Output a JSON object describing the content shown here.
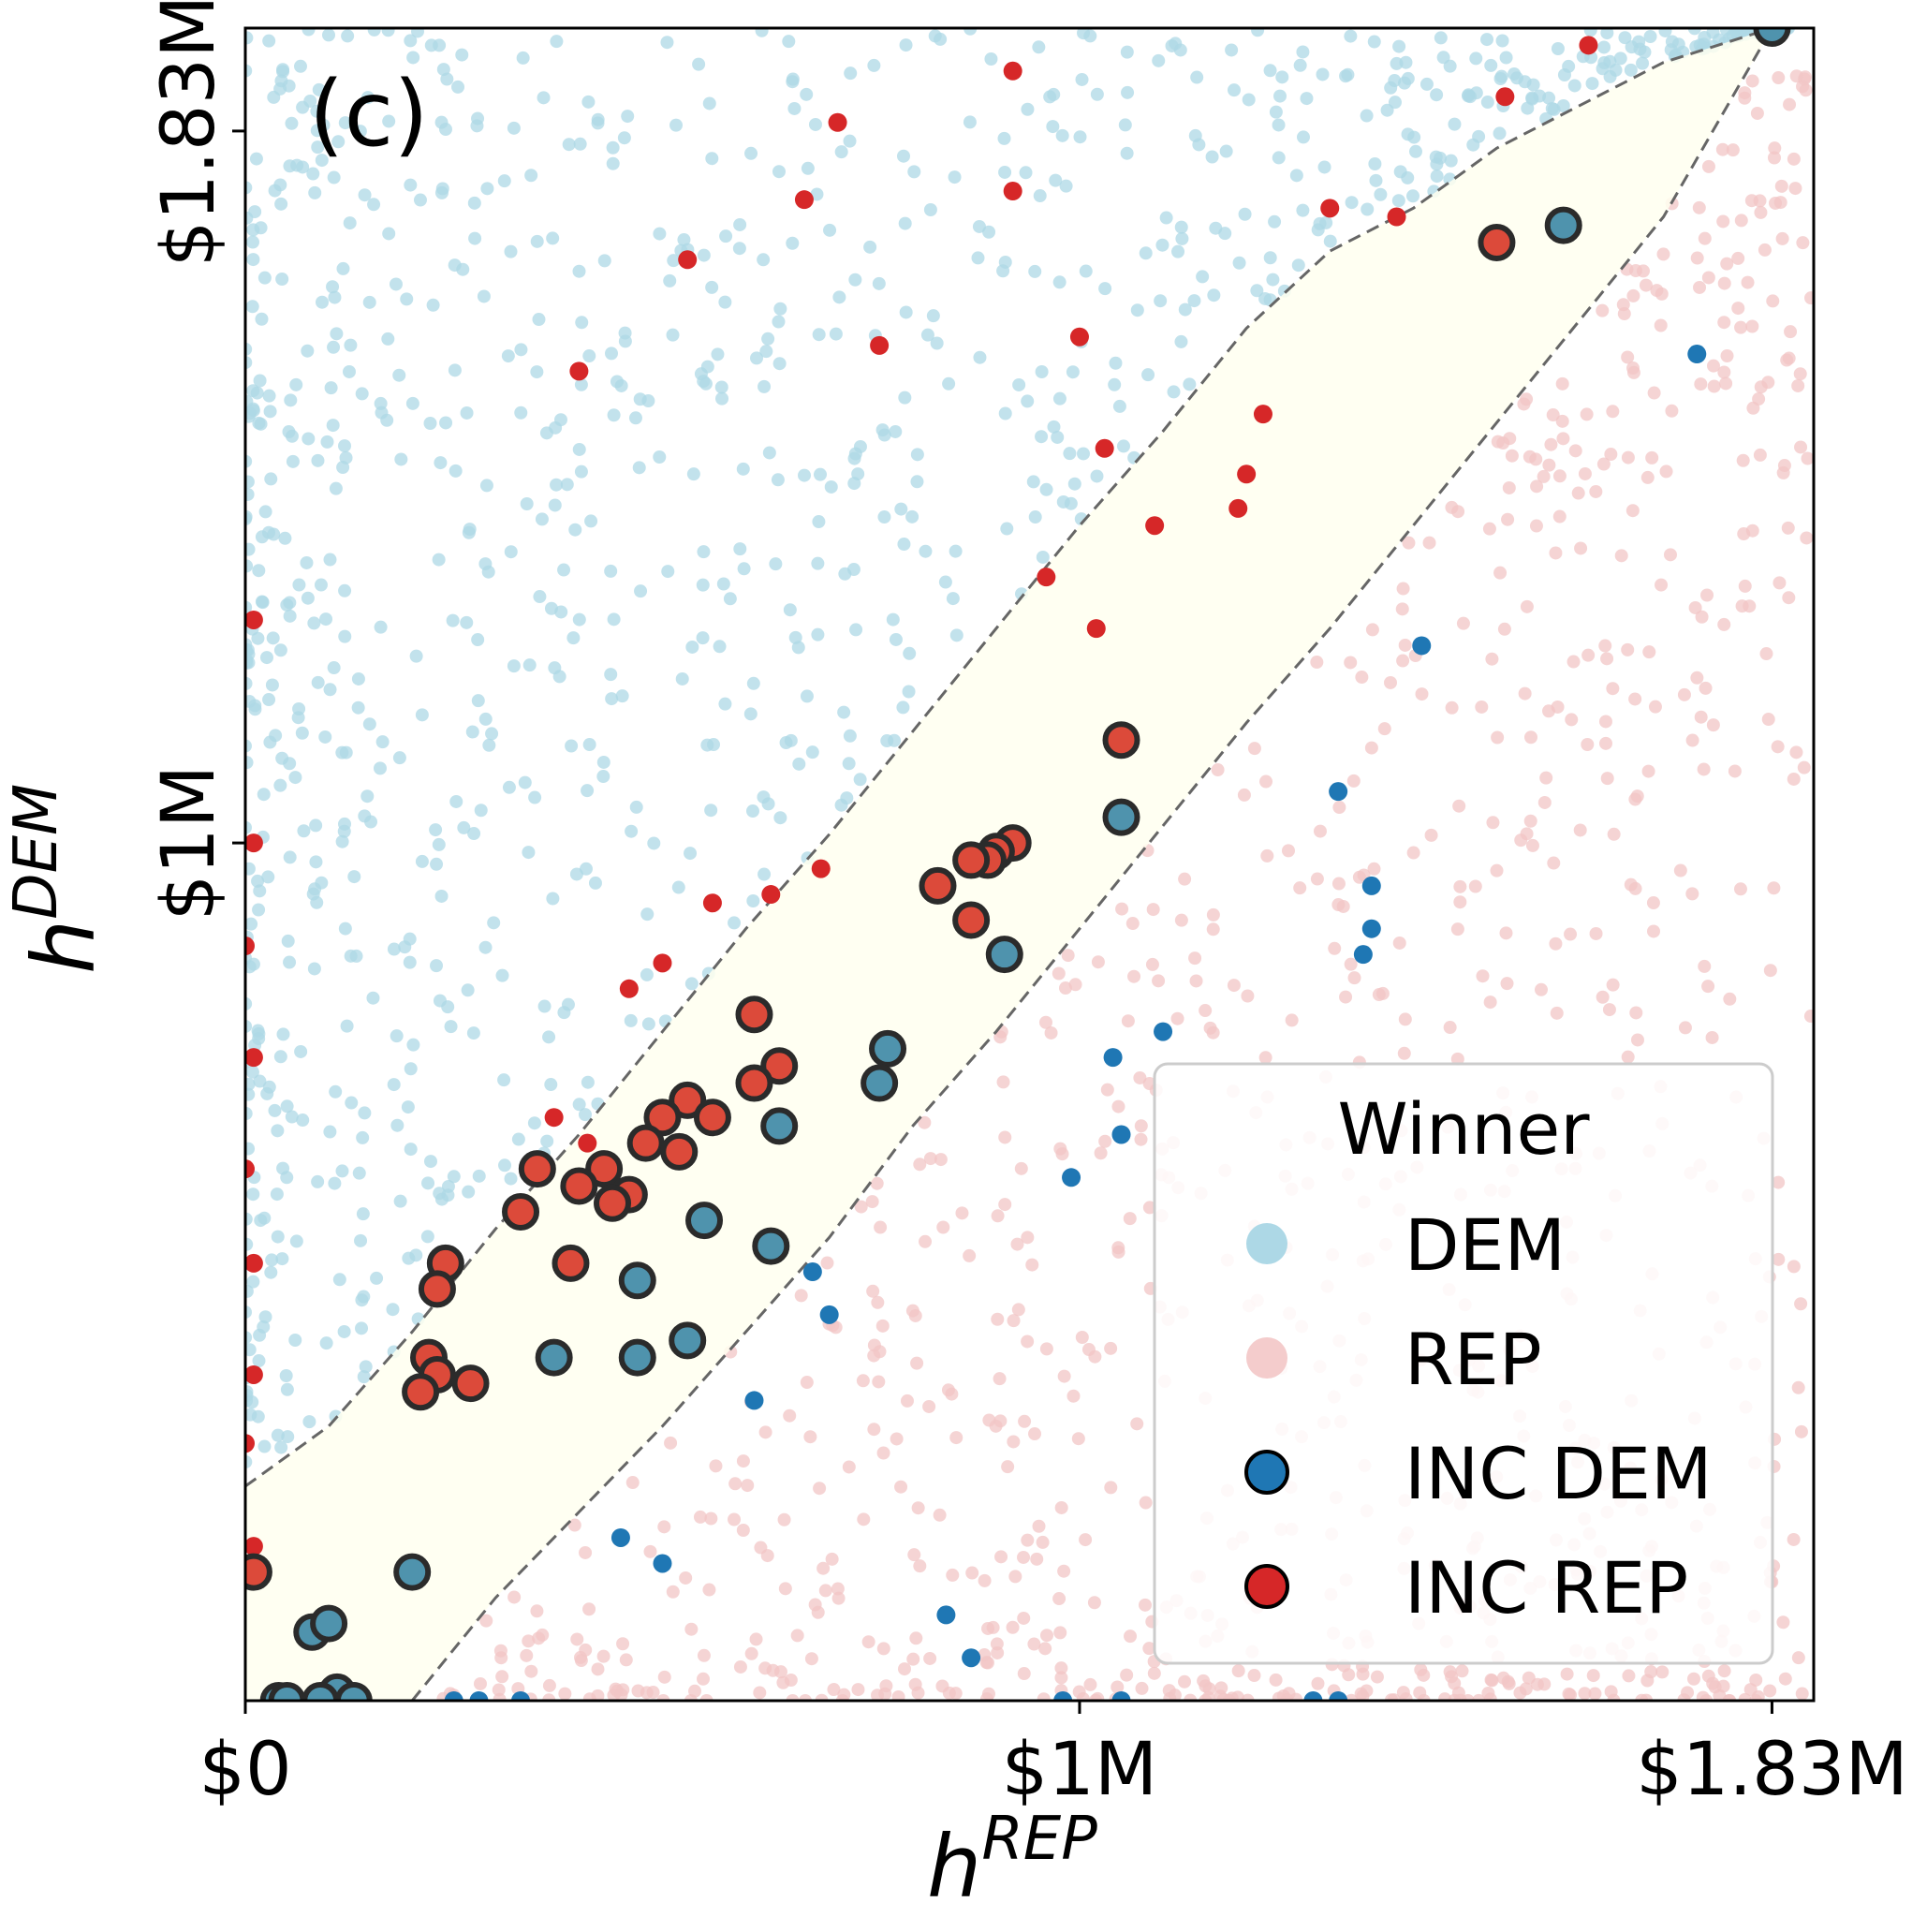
{
  "chart_data": {
    "type": "scatter",
    "panel_label": "(c)",
    "xlabel": "h",
    "xlabel_sup": "REP",
    "ylabel": "h",
    "ylabel_sup": "DEM",
    "xlim": [
      0,
      1.88
    ],
    "ylim": [
      0,
      1.95
    ],
    "x_ticks": [
      {
        "value": 0,
        "label": "$0"
      },
      {
        "value": 1.0,
        "label": "$1M"
      },
      {
        "value": 1.83,
        "label": "$1.83M"
      }
    ],
    "y_ticks": [
      {
        "value": 1.0,
        "label": "$1M"
      },
      {
        "value": 1.83,
        "label": "$1.83M"
      }
    ],
    "units": "millions USD",
    "legend": {
      "title": "Winner",
      "position": "lower-right",
      "entries": [
        {
          "label": "DEM",
          "color": "#add8e6",
          "style": "faded"
        },
        {
          "label": "REP",
          "color": "#f4cccc",
          "style": "faded"
        },
        {
          "label": "INC DEM",
          "color": "#1f77b4",
          "style": "outlined"
        },
        {
          "label": "INC REP",
          "color": "#d62728",
          "style": "outlined"
        }
      ]
    },
    "colors": {
      "dem": "#add8e6",
      "rep": "#f2c6c6",
      "inc_dem": "#1f77b4",
      "inc_rep": "#d62728",
      "band_fill": "#fffff0",
      "band_edge": "#666666",
      "outline": "#2b2b2b"
    },
    "band": {
      "description": "shaded close-race region between dashed boundaries",
      "upper": [
        [
          0,
          0.25
        ],
        [
          0.1,
          0.32
        ],
        [
          0.2,
          0.43
        ],
        [
          0.3,
          0.55
        ],
        [
          0.4,
          0.66
        ],
        [
          0.5,
          0.78
        ],
        [
          0.6,
          0.9
        ],
        [
          0.7,
          1.01
        ],
        [
          0.8,
          1.13
        ],
        [
          0.9,
          1.25
        ],
        [
          1.0,
          1.37
        ],
        [
          1.1,
          1.48
        ],
        [
          1.2,
          1.6
        ],
        [
          1.3,
          1.69
        ],
        [
          1.4,
          1.74
        ],
        [
          1.5,
          1.81
        ],
        [
          1.6,
          1.86
        ],
        [
          1.7,
          1.91
        ],
        [
          1.83,
          1.95
        ]
      ],
      "lower": [
        [
          0.2,
          0
        ],
        [
          0.3,
          0.12
        ],
        [
          0.4,
          0.22
        ],
        [
          0.5,
          0.32
        ],
        [
          0.6,
          0.43
        ],
        [
          0.7,
          0.54
        ],
        [
          0.8,
          0.67
        ],
        [
          0.9,
          0.78
        ],
        [
          1.0,
          0.9
        ],
        [
          1.1,
          1.02
        ],
        [
          1.2,
          1.14
        ],
        [
          1.3,
          1.25
        ],
        [
          1.4,
          1.37
        ],
        [
          1.5,
          1.49
        ],
        [
          1.6,
          1.61
        ],
        [
          1.7,
          1.73
        ],
        [
          1.83,
          1.95
        ]
      ]
    },
    "series": [
      {
        "name": "INC REP (close race, outlined)",
        "points": [
          [
            1.05,
            1.12
          ],
          [
            0.92,
            1.0
          ],
          [
            0.9,
            0.99
          ],
          [
            0.89,
            0.98
          ],
          [
            0.87,
            0.98
          ],
          [
            0.83,
            0.95
          ],
          [
            0.87,
            0.91
          ],
          [
            0.61,
            0.8
          ],
          [
            0.64,
            0.74
          ],
          [
            0.61,
            0.72
          ],
          [
            0.53,
            0.7
          ],
          [
            0.56,
            0.68
          ],
          [
            0.5,
            0.68
          ],
          [
            0.48,
            0.65
          ],
          [
            0.52,
            0.64
          ],
          [
            0.43,
            0.62
          ],
          [
            0.35,
            0.62
          ],
          [
            0.46,
            0.59
          ],
          [
            0.4,
            0.6
          ],
          [
            0.44,
            0.58
          ],
          [
            0.33,
            0.57
          ],
          [
            0.24,
            0.51
          ],
          [
            0.39,
            0.51
          ],
          [
            0.23,
            0.48
          ],
          [
            0.22,
            0.4
          ],
          [
            0.23,
            0.38
          ],
          [
            0.27,
            0.37
          ],
          [
            0.21,
            0.36
          ],
          [
            0.01,
            0.15
          ],
          [
            1.5,
            1.7
          ]
        ]
      },
      {
        "name": "INC DEM (close race, outlined)",
        "points": [
          [
            1.05,
            1.03
          ],
          [
            0.91,
            0.87
          ],
          [
            0.77,
            0.76
          ],
          [
            0.76,
            0.72
          ],
          [
            0.64,
            0.67
          ],
          [
            0.55,
            0.56
          ],
          [
            0.63,
            0.53
          ],
          [
            0.47,
            0.49
          ],
          [
            0.53,
            0.42
          ],
          [
            0.37,
            0.4
          ],
          [
            0.47,
            0.4
          ],
          [
            0.2,
            0.15
          ],
          [
            0.08,
            0.08
          ],
          [
            0.1,
            0.09
          ],
          [
            1.58,
            1.72
          ],
          [
            1.83,
            1.95
          ],
          [
            0.11,
            0.01
          ],
          [
            0.04,
            0.0
          ],
          [
            0.09,
            0.0
          ],
          [
            0.13,
            0.0
          ],
          [
            0.05,
            0.0
          ]
        ]
      },
      {
        "name": "INC REP (uncontested-style, solid)",
        "points": [
          [
            0.92,
            1.9
          ],
          [
            0.71,
            1.84
          ],
          [
            0.67,
            1.75
          ],
          [
            0.92,
            1.76
          ],
          [
            1.3,
            1.74
          ],
          [
            1.38,
            1.73
          ],
          [
            0.53,
            1.68
          ],
          [
            1.51,
            1.87
          ],
          [
            1.61,
            1.93
          ],
          [
            0.76,
            1.58
          ],
          [
            1.0,
            1.59
          ],
          [
            0.4,
            1.55
          ],
          [
            1.22,
            1.5
          ],
          [
            1.03,
            1.46
          ],
          [
            1.2,
            1.43
          ],
          [
            1.19,
            1.39
          ],
          [
            1.09,
            1.37
          ],
          [
            0.96,
            1.31
          ],
          [
            1.02,
            1.25
          ],
          [
            0.69,
            0.97
          ],
          [
            0.63,
            0.94
          ],
          [
            0.56,
            0.93
          ],
          [
            0.5,
            0.86
          ],
          [
            0.46,
            0.83
          ],
          [
            0.37,
            0.68
          ],
          [
            0.41,
            0.65
          ],
          [
            0.01,
            1.26
          ],
          [
            0.01,
            1.0
          ],
          [
            0.0,
            0.88
          ],
          [
            0.01,
            0.75
          ],
          [
            0.0,
            0.62
          ],
          [
            0.01,
            0.51
          ],
          [
            0.01,
            0.38
          ],
          [
            0.0,
            0.3
          ],
          [
            0.01,
            0.18
          ]
        ]
      },
      {
        "name": "INC DEM (solid)",
        "points": [
          [
            1.74,
            1.57
          ],
          [
            1.41,
            1.23
          ],
          [
            1.31,
            1.06
          ],
          [
            1.35,
            0.95
          ],
          [
            1.35,
            0.9
          ],
          [
            1.34,
            0.87
          ],
          [
            1.1,
            0.78
          ],
          [
            1.04,
            0.75
          ],
          [
            1.05,
            0.66
          ],
          [
            0.99,
            0.61
          ],
          [
            0.68,
            0.5
          ],
          [
            0.7,
            0.45
          ],
          [
            0.61,
            0.35
          ],
          [
            0.45,
            0.19
          ],
          [
            0.5,
            0.16
          ],
          [
            0.84,
            0.1
          ],
          [
            0.87,
            0.05
          ],
          [
            0.25,
            0.0
          ],
          [
            0.28,
            0.0
          ],
          [
            0.33,
            0.0
          ],
          [
            0.98,
            0.0
          ],
          [
            1.05,
            0.0
          ],
          [
            1.28,
            0.0
          ],
          [
            1.31,
            0.0
          ]
        ]
      }
    ],
    "background_series": [
      {
        "name": "DEM winners (faded)",
        "count": 900,
        "region": "above band, dense near x=0"
      },
      {
        "name": "REP winners (faded)",
        "count": 900,
        "region": "below band, dense near y=0"
      }
    ]
  }
}
